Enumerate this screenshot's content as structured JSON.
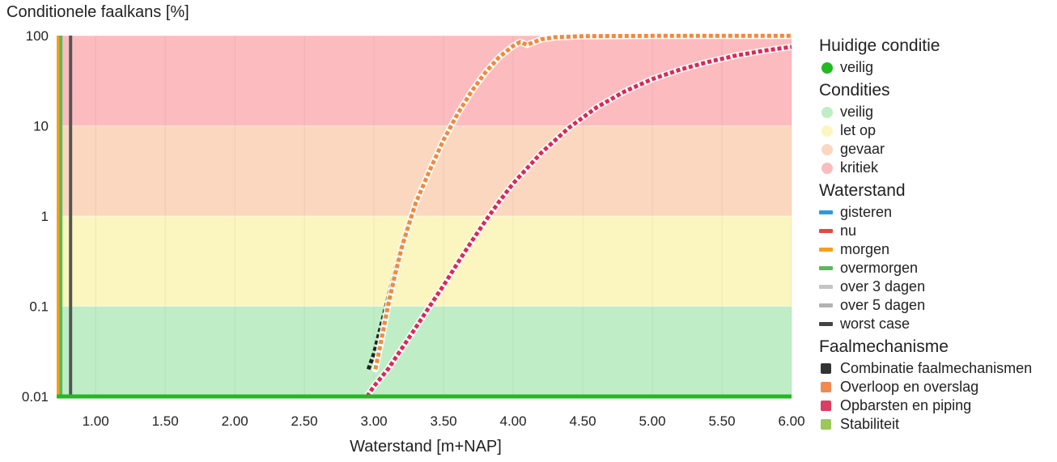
{
  "chart_data": {
    "type": "line",
    "title": "",
    "ylabel": "Conditionele faalkans [%]",
    "xlabel": "Waterstand [m+NAP]",
    "y_scale": "log",
    "xlim": [
      0.72,
      6.0
    ],
    "ylim": [
      0.01,
      100
    ],
    "x_ticks": [
      "1.00",
      "1.50",
      "2.00",
      "2.50",
      "3.00",
      "3.50",
      "4.00",
      "4.50",
      "5.00",
      "5.50",
      "6.00"
    ],
    "y_ticks": [
      "0.01",
      "0.1",
      "1",
      "10",
      "100"
    ],
    "grid": true,
    "legend_position": "right",
    "condition_bands": [
      {
        "label": "veilig",
        "from": 0.01,
        "to": 0.1,
        "color": "#bfeec6"
      },
      {
        "label": "let op",
        "from": 0.1,
        "to": 1,
        "color": "#fbf6c0"
      },
      {
        "label": "gevaar",
        "from": 1,
        "to": 10,
        "color": "#fcd7bf"
      },
      {
        "label": "kritiek",
        "from": 10,
        "to": 100,
        "color": "#fcbcbf"
      }
    ],
    "waterstand_lines": [
      {
        "name": "morgen",
        "x": 0.72,
        "color": "#f5a01f"
      },
      {
        "name": "overmorgen",
        "x": 0.75,
        "color": "#5cb85c"
      },
      {
        "name": "worst case",
        "x": 0.82,
        "color": "#555555"
      }
    ],
    "series": [
      {
        "name": "Combinatie faalmechanismen",
        "color": "#222222",
        "x": [
          2.96,
          3.0,
          3.05,
          3.1,
          3.15,
          3.2,
          3.25,
          3.3
        ],
        "y": [
          0.02,
          0.03,
          0.06,
          0.12,
          0.25,
          0.48,
          0.85,
          1.3
        ]
      },
      {
        "name": "Overloop en overslag",
        "color": "#f08a3c",
        "x": [
          3.01,
          3.05,
          3.1,
          3.15,
          3.2,
          3.25,
          3.3,
          3.4,
          3.5,
          3.6,
          3.7,
          3.8,
          3.9,
          4.0,
          4.05,
          4.1,
          4.2,
          4.3,
          4.5,
          5.0,
          5.5,
          6.0
        ],
        "y": [
          0.02,
          0.04,
          0.1,
          0.22,
          0.45,
          0.8,
          1.4,
          3.2,
          7.0,
          13.5,
          24,
          39,
          58,
          77,
          85,
          79,
          91,
          96,
          98.5,
          99.3,
          99.5,
          99.6
        ]
      },
      {
        "name": "Opbarsten en piping",
        "color": "#dd2855",
        "x": [
          2.95,
          3.0,
          3.1,
          3.2,
          3.3,
          3.4,
          3.5,
          3.6,
          3.7,
          3.8,
          3.9,
          4.0,
          4.2,
          4.4,
          4.6,
          4.8,
          5.0,
          5.2,
          5.4,
          5.6,
          5.8,
          6.0
        ],
        "y": [
          0.01,
          0.013,
          0.02,
          0.034,
          0.058,
          0.1,
          0.17,
          0.3,
          0.52,
          0.88,
          1.45,
          2.3,
          5.0,
          9.5,
          16,
          24,
          33,
          42,
          51,
          60,
          68,
          75
        ]
      }
    ],
    "current_condition_line": {
      "label": "veilig",
      "y": 0.01,
      "color": "#22b922"
    }
  },
  "legend": {
    "current": {
      "title": "Huidige conditie",
      "items": [
        {
          "label": "veilig",
          "color": "#22b922"
        }
      ]
    },
    "conditions": {
      "title": "Condities",
      "items": [
        {
          "label": "veilig",
          "color": "#bfeec6"
        },
        {
          "label": "let op",
          "color": "#fbf6c0"
        },
        {
          "label": "gevaar",
          "color": "#fcd7bf"
        },
        {
          "label": "kritiek",
          "color": "#fcbcbf"
        }
      ]
    },
    "waterstand": {
      "title": "Waterstand",
      "items": [
        {
          "label": "gisteren",
          "color": "#2b9be0"
        },
        {
          "label": "nu",
          "color": "#e8473e"
        },
        {
          "label": "morgen",
          "color": "#f5a01f"
        },
        {
          "label": "overmorgen",
          "color": "#5cb85c"
        },
        {
          "label": "over 3 dagen",
          "color": "#c4c4c4"
        },
        {
          "label": "over 5 dagen",
          "color": "#b3b3b3"
        },
        {
          "label": "worst case",
          "color": "#444444"
        }
      ]
    },
    "faalmechanisme": {
      "title": "Faalmechanisme",
      "items": [
        {
          "label": "Combinatie faalmechanismen",
          "color": "#333333"
        },
        {
          "label": "Overloop en overslag",
          "color": "#f08a50"
        },
        {
          "label": "Opbarsten en piping",
          "color": "#dd3d62"
        },
        {
          "label": "Stabiliteit",
          "color": "#9bc85a"
        }
      ]
    }
  }
}
